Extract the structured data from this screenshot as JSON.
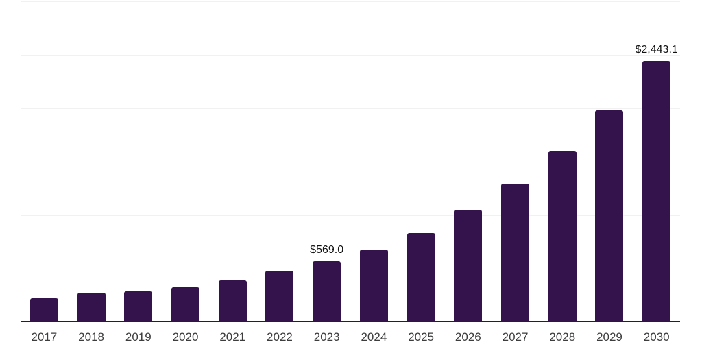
{
  "chart_data": {
    "type": "bar",
    "title": "",
    "categories": [
      "2017",
      "2018",
      "2019",
      "2020",
      "2021",
      "2022",
      "2023",
      "2024",
      "2025",
      "2026",
      "2027",
      "2028",
      "2029",
      "2030"
    ],
    "values": [
      224,
      275,
      288,
      327,
      391,
      481,
      569.0,
      679,
      833,
      1051,
      1295,
      1602,
      1981,
      2443.1
    ],
    "value_labels": [
      "",
      "",
      "",
      "",
      "",
      "",
      "$569.0",
      "",
      "",
      "",
      "",
      "",
      "",
      "$2,443.1"
    ],
    "xlabel": "",
    "ylabel": "",
    "ylim": [
      0,
      3000
    ],
    "grid_step": 500,
    "grid": "horizontal-only",
    "legend_position": "none",
    "colors": {
      "bar": "#34124B",
      "gridline": "#f1f1f1",
      "axis_line": "#222222",
      "x_tick_label": "#3d3d3d",
      "data_label": "#111111",
      "background": "#ffffff"
    }
  }
}
